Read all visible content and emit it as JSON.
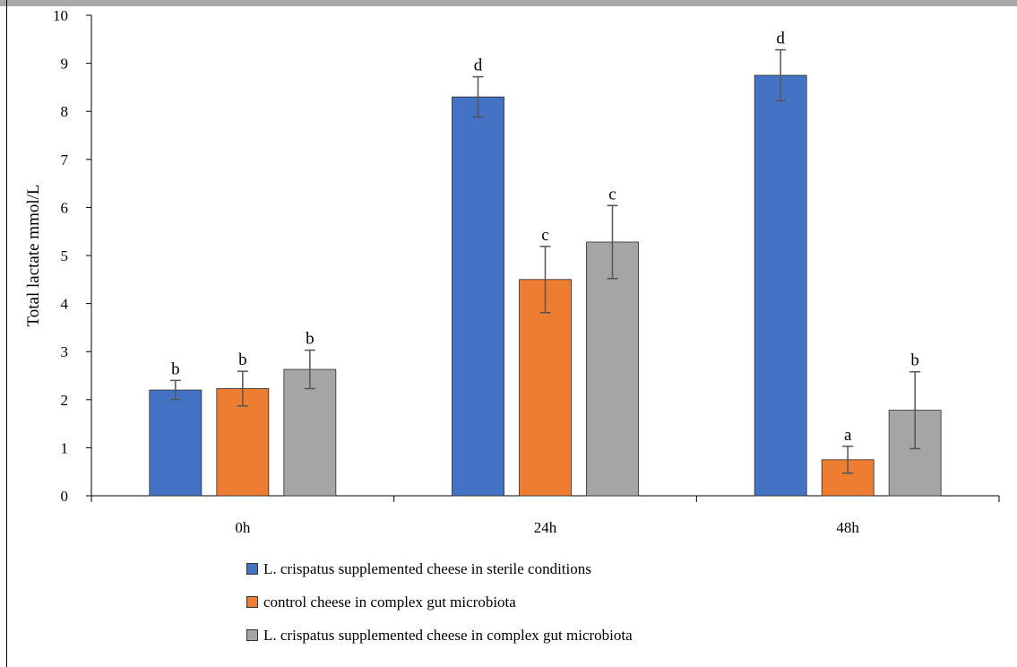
{
  "chart_data": {
    "type": "bar",
    "categories": [
      "0h",
      "24h",
      "48h"
    ],
    "ylabel": "Total lactate mmol/L",
    "xlabel": "",
    "ylim": [
      0,
      10
    ],
    "yticks": [
      0,
      1,
      2,
      3,
      4,
      5,
      6,
      7,
      8,
      9,
      10
    ],
    "grid": false,
    "legend_position": "bottom",
    "series": [
      {
        "name": "L. crispatus supplemented cheese in sterile conditions",
        "color": "#4472C4",
        "values": [
          2.2,
          8.3,
          8.75
        ],
        "errors": [
          0.2,
          0.42,
          0.53
        ],
        "labels": [
          "b",
          "d",
          "d"
        ]
      },
      {
        "name": "control cheese in complex gut microbiota",
        "color": "#ED7D31",
        "values": [
          2.23,
          4.5,
          0.75
        ],
        "errors": [
          0.36,
          0.69,
          0.28
        ],
        "labels": [
          "b",
          "c",
          "a"
        ]
      },
      {
        "name": "L. crispatus supplemented cheese in complex gut microbiota",
        "color": "#A5A5A5",
        "values": [
          2.63,
          5.28,
          1.78
        ],
        "errors": [
          0.4,
          0.76,
          0.8
        ],
        "labels": [
          "b",
          "c",
          "b"
        ]
      }
    ]
  }
}
